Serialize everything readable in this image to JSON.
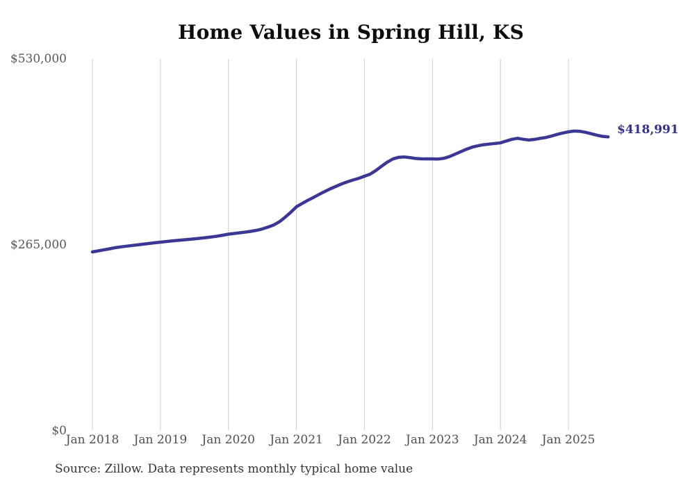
{
  "page_title": "Home Values in Spring Hill, KS",
  "source_note": "Source: Zillow. Data represents monthly typical home value",
  "chart_data": {
    "type": "line",
    "title": "Home Values in Spring Hill, KS",
    "xlabel": "",
    "ylabel": "",
    "x_start": "Jan 2018",
    "x_end": "Aug 2025",
    "x_interval": "monthly",
    "x_tick_labels": [
      "Jan 2018",
      "Jan 2019",
      "Jan 2020",
      "Jan 2021",
      "Jan 2022",
      "Jan 2023",
      "Jan 2024",
      "Jan 2025"
    ],
    "y_ticks": [
      {
        "label": "$0",
        "value": 0
      },
      {
        "label": "$265,000",
        "value": 265000
      },
      {
        "label": "$530,000",
        "value": 530000
      }
    ],
    "ylim": [
      0,
      530000
    ],
    "grid": "vertical-only",
    "legend": "none",
    "end_label": "$418,991",
    "final_value": 418991,
    "line_color": "#3b3795",
    "end_label_color": "#33308c",
    "grid_color": "#cccccc",
    "values": [
      255100,
      256500,
      258000,
      259500,
      261000,
      262200,
      263200,
      264200,
      265100,
      266100,
      267100,
      268100,
      269000,
      269800,
      270600,
      271400,
      272100,
      272900,
      273700,
      274500,
      275400,
      276400,
      277500,
      278800,
      280300,
      281300,
      282300,
      283300,
      284400,
      285900,
      287800,
      290500,
      293500,
      298000,
      304500,
      311500,
      319400,
      324000,
      328600,
      332600,
      337000,
      341100,
      345100,
      348600,
      352000,
      355000,
      357600,
      359900,
      362900,
      365900,
      371000,
      377000,
      382900,
      387400,
      389900,
      390400,
      389500,
      388200,
      387700,
      387600,
      387600,
      387400,
      388400,
      390900,
      394300,
      397900,
      401400,
      404300,
      406200,
      407800,
      408700,
      409600,
      410500,
      413000,
      415500,
      417000,
      415600,
      414500,
      415400,
      416900,
      418100,
      420100,
      422500,
      424500,
      426200,
      427300,
      427000,
      425500,
      423500,
      421400,
      419700,
      418991
    ]
  }
}
